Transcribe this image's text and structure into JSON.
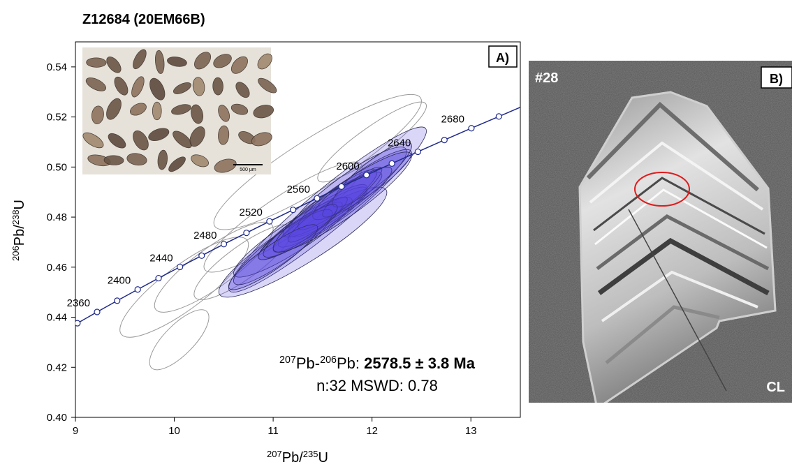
{
  "chart_data": {
    "type": "concordia",
    "title": "Z12684 (20EM66B)",
    "panel_label": "A)",
    "xlabel": [
      "207",
      "Pb/",
      "235",
      "U"
    ],
    "ylabel": [
      "206",
      "Pb/",
      "238",
      "U"
    ],
    "xlim": [
      9,
      13.5
    ],
    "ylim": [
      0.4,
      0.55
    ],
    "xticks": [
      9,
      10,
      11,
      12,
      13
    ],
    "yticks": [
      {
        "value": 0.4,
        "label": "0.40"
      },
      0.42,
      0.44,
      0.46,
      0.48,
      {
        "value": 0.5,
        "label": "0.50"
      },
      0.52,
      0.54
    ],
    "concordia": {
      "color": "#1f2a8a",
      "x": [
        9.02,
        9.219,
        9.422,
        9.63,
        9.841,
        10.057,
        10.277,
        10.501,
        10.73,
        10.963,
        11.201,
        11.444,
        11.691,
        11.944,
        12.201,
        12.464,
        12.732,
        13.005,
        13.283
      ],
      "y": [
        0.4376,
        0.4421,
        0.4466,
        0.4511,
        0.4556,
        0.4601,
        0.4646,
        0.4692,
        0.4737,
        0.4783,
        0.4829,
        0.4875,
        0.4922,
        0.4968,
        0.5014,
        0.5061,
        0.5108,
        0.5155,
        0.5202
      ],
      "age_labels": [
        null,
        2360,
        null,
        2400,
        null,
        2440,
        null,
        2480,
        null,
        2520,
        null,
        2560,
        null,
        2600,
        null,
        2640,
        null,
        2680,
        null
      ]
    },
    "ellipse_sets": [
      {
        "color": "#9a9a9a",
        "filled": false,
        "ellipses": [
          {
            "x": 11.45,
            "y": 0.502,
            "x_err": 1.05,
            "y_err": 0.027,
            "rho": 0.9
          },
          {
            "x": 10.1,
            "y": 0.452,
            "x_err": 0.65,
            "y_err": 0.02,
            "rho": 0.85
          },
          {
            "x": 10.4,
            "y": 0.46,
            "x_err": 0.6,
            "y_err": 0.018,
            "rho": 0.85
          },
          {
            "x": 10.05,
            "y": 0.431,
            "x_err": 0.3,
            "y_err": 0.012,
            "rho": 0.75
          },
          {
            "x": 10.7,
            "y": 0.462,
            "x_err": 0.5,
            "y_err": 0.015,
            "rho": 0.85
          },
          {
            "x": 11.1,
            "y": 0.48,
            "x_err": 0.8,
            "y_err": 0.022,
            "rho": 0.9
          },
          {
            "x": 12.0,
            "y": 0.51,
            "x_err": 0.55,
            "y_err": 0.016,
            "rho": 0.9
          }
        ]
      },
      {
        "color": "#5546e0",
        "filled": true,
        "ellipses": [
          {
            "x": 11.55,
            "y": 0.483,
            "x_err": 1.0,
            "y_err": 0.033,
            "rho": 0.95
          },
          {
            "x": 11.3,
            "y": 0.47,
            "x_err": 0.85,
            "y_err": 0.022,
            "rho": 0.9
          },
          {
            "x": 11.75,
            "y": 0.49,
            "x_err": 0.6,
            "y_err": 0.018,
            "rho": 0.9
          },
          {
            "x": 11.5,
            "y": 0.48,
            "x_err": 0.45,
            "y_err": 0.012,
            "rho": 0.9
          },
          {
            "x": 11.4,
            "y": 0.478,
            "x_err": 0.55,
            "y_err": 0.015,
            "rho": 0.92
          },
          {
            "x": 11.6,
            "y": 0.485,
            "x_err": 0.5,
            "y_err": 0.013,
            "rho": 0.9
          },
          {
            "x": 11.2,
            "y": 0.472,
            "x_err": 0.6,
            "y_err": 0.016,
            "rho": 0.9
          },
          {
            "x": 11.35,
            "y": 0.476,
            "x_err": 0.35,
            "y_err": 0.01,
            "rho": 0.9
          },
          {
            "x": 11.65,
            "y": 0.487,
            "x_err": 0.4,
            "y_err": 0.012,
            "rho": 0.9
          },
          {
            "x": 11.9,
            "y": 0.493,
            "x_err": 0.5,
            "y_err": 0.014,
            "rho": 0.9
          },
          {
            "x": 11.1,
            "y": 0.468,
            "x_err": 0.5,
            "y_err": 0.015,
            "rho": 0.9
          },
          {
            "x": 11.45,
            "y": 0.479,
            "x_err": 0.3,
            "y_err": 0.009,
            "rho": 0.9
          },
          {
            "x": 12.0,
            "y": 0.497,
            "x_err": 0.4,
            "y_err": 0.013,
            "rho": 0.88
          },
          {
            "x": 11.8,
            "y": 0.49,
            "x_err": 0.3,
            "y_err": 0.01,
            "rho": 0.9
          },
          {
            "x": 11.25,
            "y": 0.474,
            "x_err": 0.4,
            "y_err": 0.011,
            "rho": 0.9
          },
          {
            "x": 11.55,
            "y": 0.482,
            "x_err": 0.65,
            "y_err": 0.018,
            "rho": 0.93
          },
          {
            "x": 11.0,
            "y": 0.464,
            "x_err": 0.45,
            "y_err": 0.013,
            "rho": 0.9
          },
          {
            "x": 11.7,
            "y": 0.486,
            "x_err": 0.7,
            "y_err": 0.02,
            "rho": 0.92
          }
        ]
      }
    ],
    "result": {
      "line1": [
        "207",
        "Pb-",
        "206",
        "Pb: ",
        "2578.5 ± 3.8 Ma"
      ],
      "line2": "n:32 MSWD: 0.78"
    },
    "inset": {
      "scale_bar": "500 μm"
    }
  },
  "panel_b": {
    "label": "B)",
    "spot": "#28",
    "mode": "CL"
  }
}
